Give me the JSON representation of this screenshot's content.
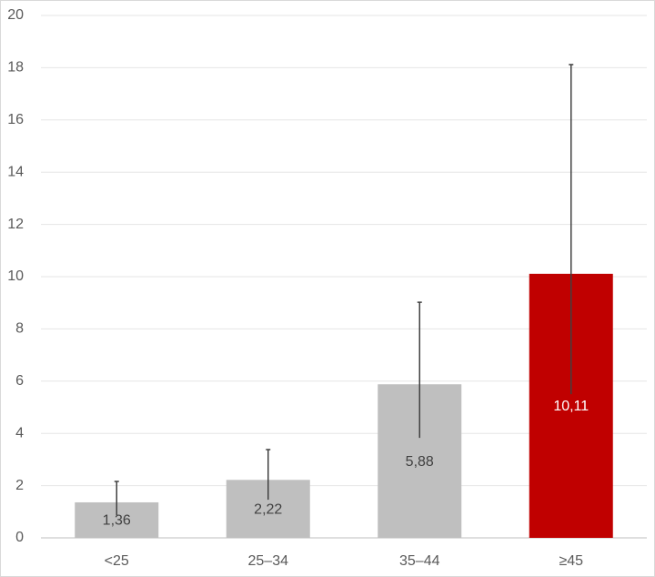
{
  "chart_data": {
    "type": "bar",
    "categories": [
      "<25",
      "25–34",
      "35–44",
      "≥45"
    ],
    "values": [
      1.36,
      2.22,
      5.88,
      10.11
    ],
    "value_labels": [
      "1,36",
      "2,22",
      "5,88",
      "10,11"
    ],
    "ci_lower": [
      0.87,
      1.46,
      3.83,
      5.5
    ],
    "ci_upper": [
      2.16,
      3.38,
      9.02,
      18.12
    ],
    "colors": [
      "#bfbfbf",
      "#bfbfbf",
      "#bfbfbf",
      "#c00000"
    ],
    "ylim": [
      0,
      20
    ],
    "yticks": [
      0,
      2,
      4,
      6,
      8,
      10,
      12,
      14,
      16,
      18,
      20
    ],
    "grid": true
  }
}
